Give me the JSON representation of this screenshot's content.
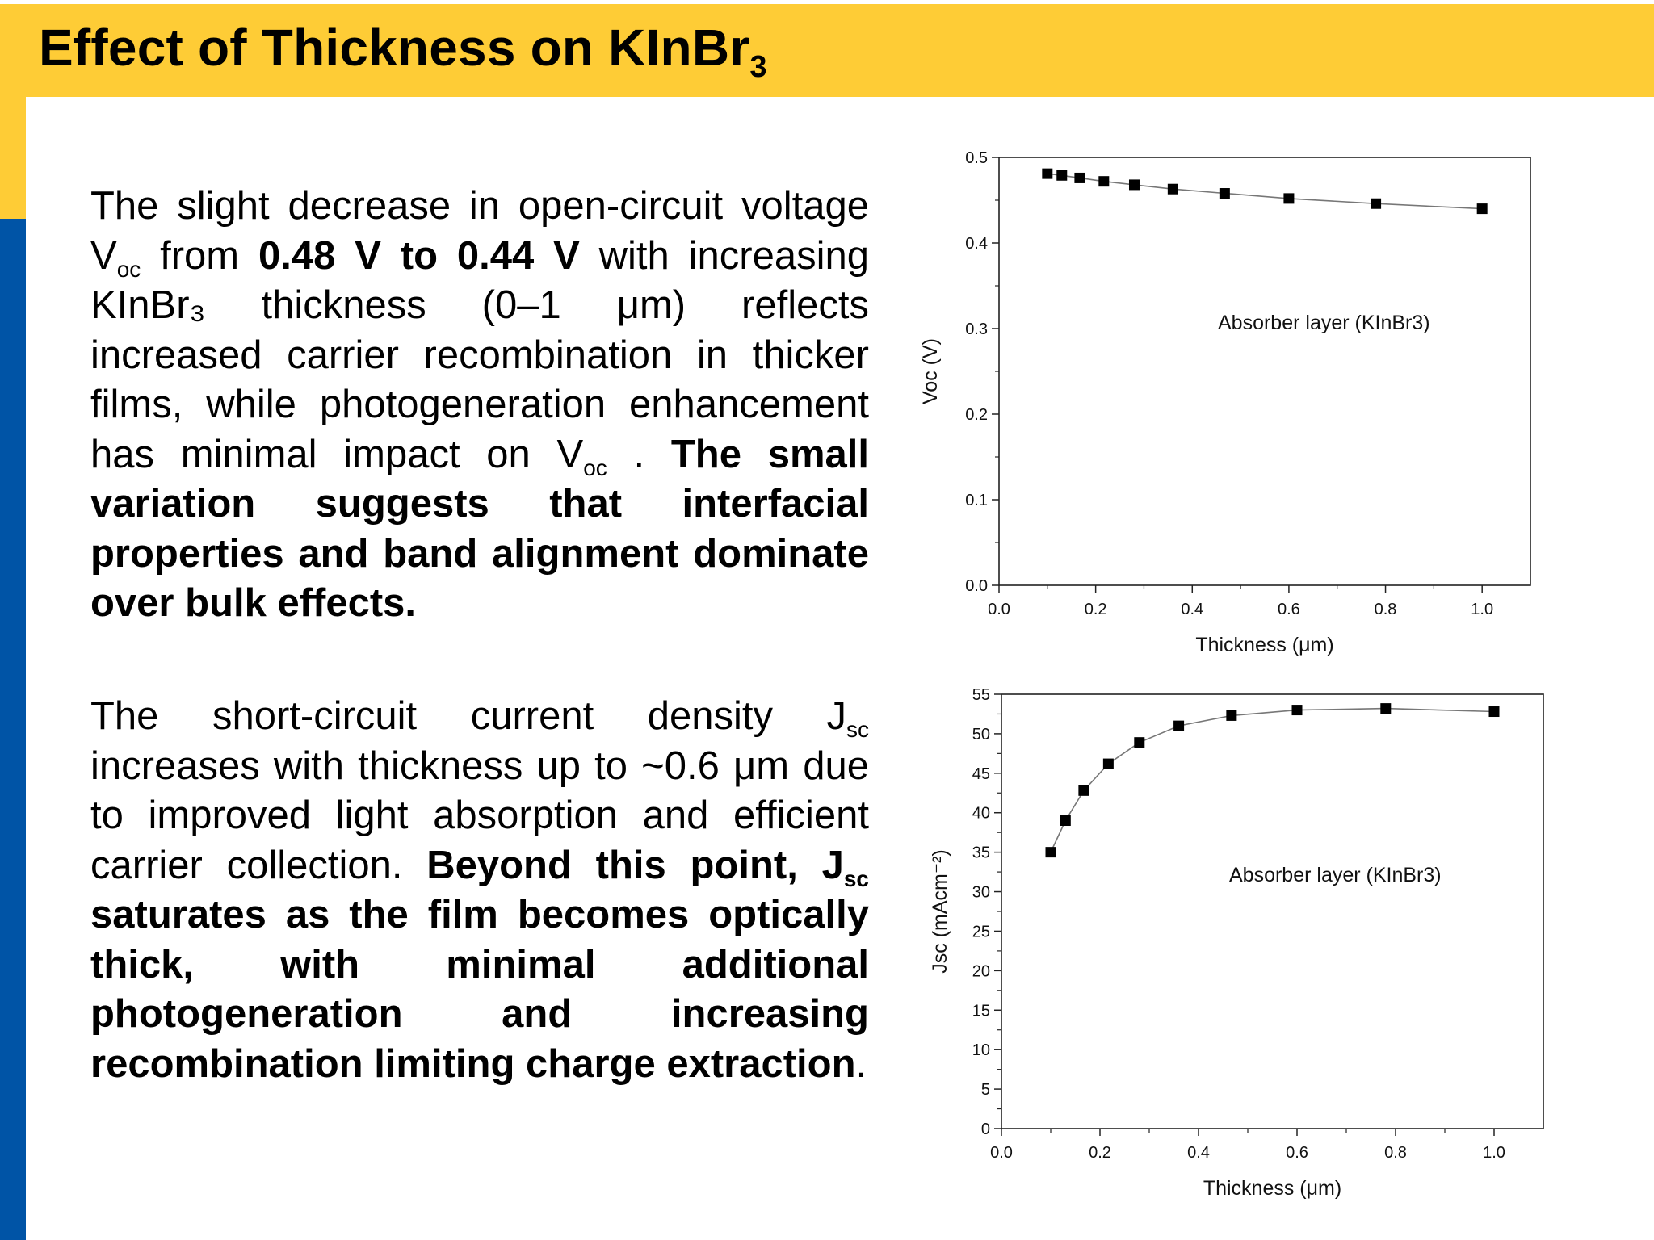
{
  "title": {
    "main": "Effect of Thickness on KInBr",
    "sub": "3"
  },
  "paragraph1": {
    "t1": "The slight decrease in open-circuit voltage V",
    "s1": "oc",
    "t2": " from ",
    "b1": "0.48 V to 0.44 V",
    "t3": " with increasing KInBr₃ thickness (0–1 μm) reflects increased carrier recombination in thicker films, while photogeneration enhancement has minimal impact on V",
    "s2": "oc",
    "t4": " . ",
    "b2": "The small variation suggests that interfacial properties and band alignment dominate over bulk effects."
  },
  "paragraph2": {
    "t1": "The short-circuit current density J",
    "s1": "sc",
    "t2": " increases with thickness up to ~0.6 μm due to improved light absorption and efficient carrier collection. ",
    "b1": "Beyond this point, J",
    "s2": "sc",
    "b2": "  saturates as the film becomes optically thick, with minimal additional photogeneration and increasing recombination limiting charge extraction",
    "t3": "."
  },
  "chart_data": [
    {
      "type": "line",
      "marker": "square",
      "xlabel": "Thickness (μm)",
      "ylabel": "Voc (V)",
      "annotation": "Absorber layer (KInBr3)",
      "xlim": [
        0,
        1.1
      ],
      "ylim": [
        0,
        0.5
      ],
      "x_ticks": [
        "0.0",
        "0.2",
        "0.4",
        "0.6",
        "0.8",
        "1.0"
      ],
      "y_ticks": [
        "0.0",
        "0.1",
        "0.2",
        "0.3",
        "0.4",
        "0.5"
      ],
      "x": [
        0.1,
        0.13,
        0.167,
        0.217,
        0.28,
        0.36,
        0.467,
        0.6,
        0.78,
        1.0
      ],
      "y": [
        0.481,
        0.479,
        0.476,
        0.472,
        0.468,
        0.463,
        0.458,
        0.452,
        0.446,
        0.44
      ],
      "colors": {
        "line": "#777777",
        "marker": "#000000"
      }
    },
    {
      "type": "line",
      "marker": "square",
      "xlabel": "Thickness (μm)",
      "ylabel": "Jsc (mAcm⁻²)",
      "annotation": "Absorber layer (KInBr3)",
      "xlim": [
        0,
        1.1
      ],
      "ylim": [
        0,
        55
      ],
      "x_ticks": [
        "0.0",
        "0.2",
        "0.4",
        "0.6",
        "0.8",
        "1.0"
      ],
      "y_ticks": [
        "0",
        "5",
        "10",
        "15",
        "20",
        "25",
        "30",
        "35",
        "40",
        "45",
        "50",
        "55"
      ],
      "x": [
        0.1,
        0.13,
        0.167,
        0.217,
        0.28,
        0.36,
        0.467,
        0.6,
        0.78,
        1.0
      ],
      "y": [
        35.0,
        39.0,
        42.8,
        46.2,
        48.9,
        51.0,
        52.3,
        53.0,
        53.2,
        52.8
      ],
      "colors": {
        "line": "#777777",
        "marker": "#000000"
      }
    }
  ]
}
